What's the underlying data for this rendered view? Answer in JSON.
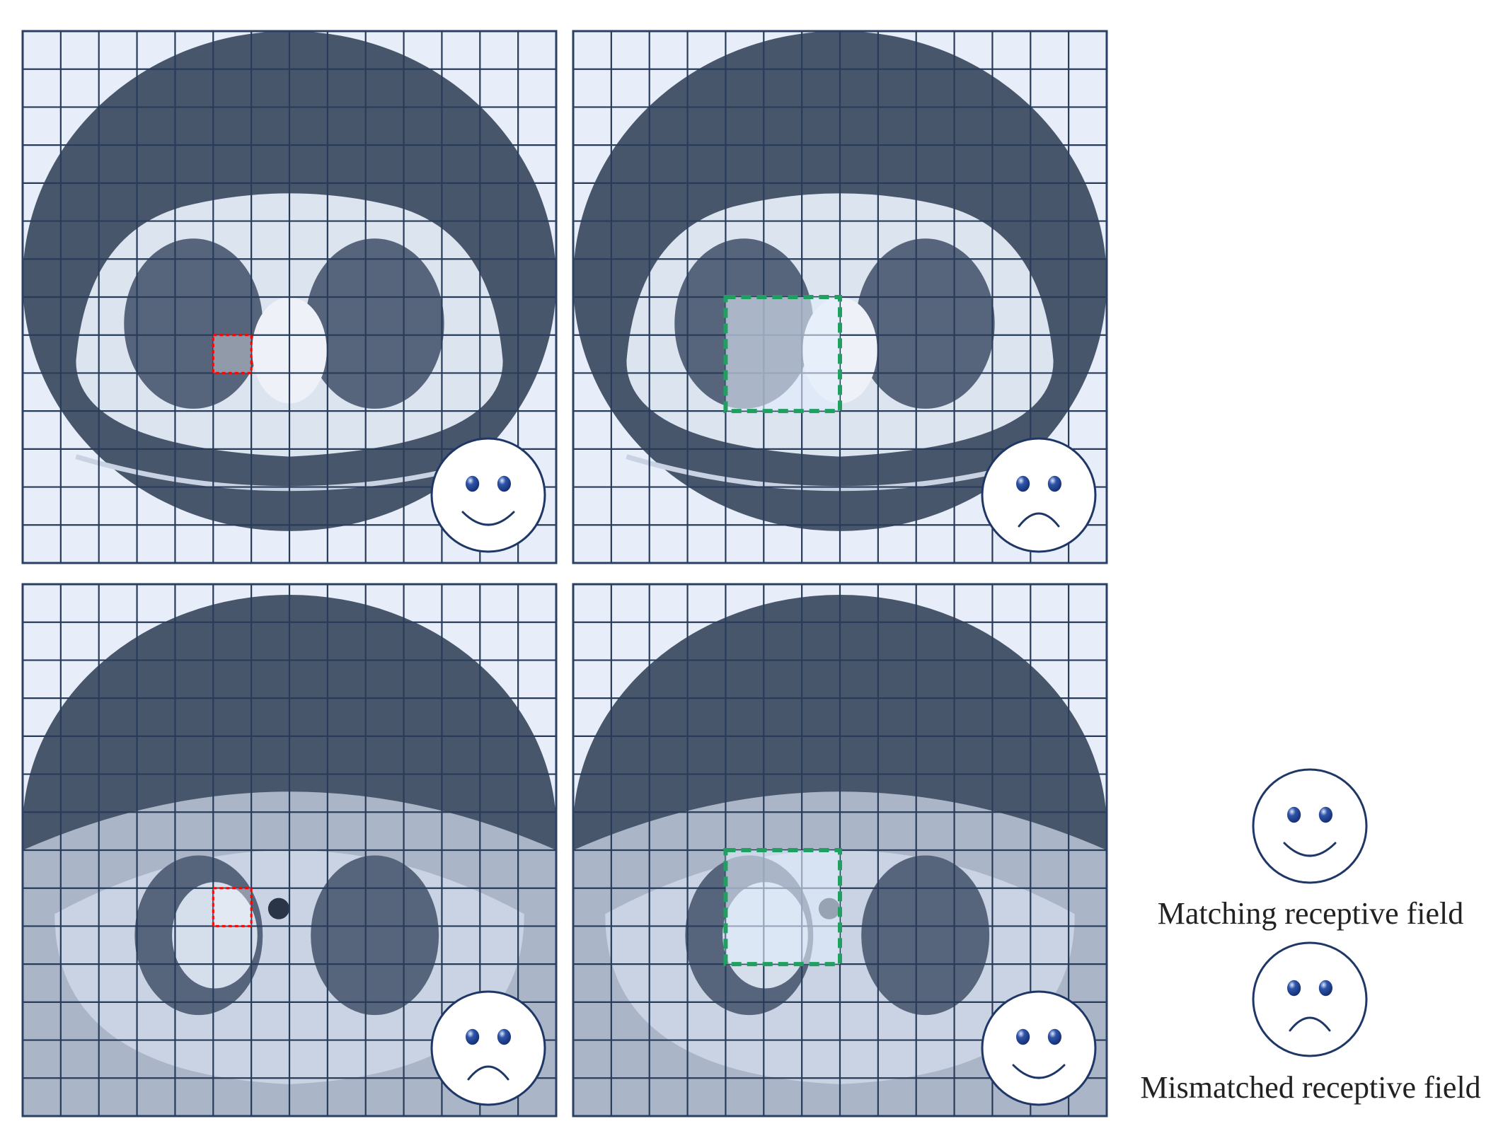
{
  "colors": {
    "panel_background": "#e7eef9",
    "grid_line": "#283c5a",
    "panel_border": "#2a3f63",
    "body_dark": "#48566b",
    "body_mid": "#aab5c8",
    "body_light": "#dce4ef",
    "lung": "#57657c",
    "small_box": "#ff0000",
    "large_box": "#1fa060",
    "face_outline": "#1e3766",
    "eye": "#2f55a8"
  },
  "panels": [
    {
      "slice": "upper",
      "box": "small",
      "face": "happy"
    },
    {
      "slice": "upper",
      "box": "large",
      "face": "sad"
    },
    {
      "slice": "lower",
      "box": "small",
      "face": "sad"
    },
    {
      "slice": "lower",
      "box": "large",
      "face": "happy"
    }
  ],
  "legend": {
    "items": [
      {
        "face": "happy",
        "label": "Matching receptive field"
      },
      {
        "face": "sad",
        "label": "Mismatched receptive field"
      }
    ]
  }
}
